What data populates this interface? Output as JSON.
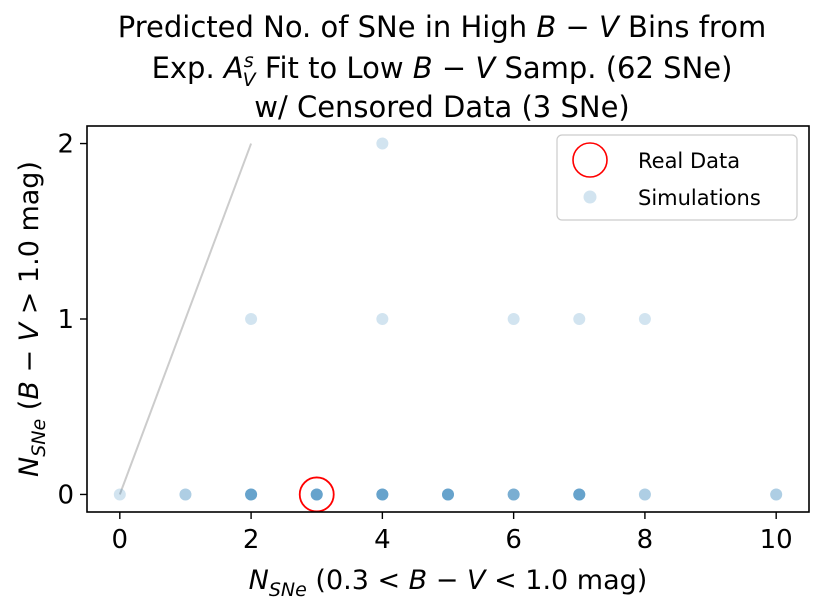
{
  "chart_data": {
    "type": "scatter",
    "title": {
      "line1_prefix": "Predicted No. of SNe in High ",
      "line1_b": "B",
      "line1_op": " − ",
      "line1_v": "V",
      "line1_suffix": " Bins from",
      "line2_prefix": "Exp. ",
      "line2_a": "A",
      "line2_sup": "s",
      "line2_sub": "V",
      "line2_mid": " Fit to Low ",
      "line2_b": "B",
      "line2_op": " − ",
      "line2_v": "V",
      "line2_suffix": " Samp. (62 SNe)",
      "line3": "w/ Censored Data (3 SNe)"
    },
    "xlabel": {
      "n": "N",
      "sub": "SNe",
      "rest_open": " (0.3 < ",
      "b": "B",
      "op": " − ",
      "v": "V",
      "rest_close": " < 1.0 mag)"
    },
    "ylabel": {
      "n": "N",
      "sub": "SNe",
      "rest_open": " (",
      "b": "B",
      "op": " − ",
      "v": "V",
      "rest_close": " > 1.0 mag)"
    },
    "xlim": [
      -0.5,
      10.5
    ],
    "ylim": [
      -0.1,
      2.1
    ],
    "xticks": [
      0,
      2,
      4,
      6,
      8,
      10
    ],
    "yticks": [
      0,
      1,
      2
    ],
    "reference_line": {
      "x": [
        0,
        2
      ],
      "y": [
        0,
        2
      ],
      "color": "#cccccc"
    },
    "series": [
      {
        "name": "Simulations",
        "color": "#1f77b4",
        "alpha": 0.2,
        "points": [
          {
            "x": 0,
            "y": 0,
            "count": 1
          },
          {
            "x": 1,
            "y": 0,
            "count": 2
          },
          {
            "x": 2,
            "y": 0,
            "count": 5
          },
          {
            "x": 3,
            "y": 0,
            "count": 5
          },
          {
            "x": 4,
            "y": 0,
            "count": 5
          },
          {
            "x": 5,
            "y": 0,
            "count": 5
          },
          {
            "x": 6,
            "y": 0,
            "count": 4
          },
          {
            "x": 7,
            "y": 0,
            "count": 5
          },
          {
            "x": 8,
            "y": 0,
            "count": 2
          },
          {
            "x": 10,
            "y": 0,
            "count": 2
          },
          {
            "x": 2,
            "y": 1,
            "count": 1
          },
          {
            "x": 4,
            "y": 1,
            "count": 1
          },
          {
            "x": 6,
            "y": 1,
            "count": 1
          },
          {
            "x": 7,
            "y": 1,
            "count": 1
          },
          {
            "x": 8,
            "y": 1,
            "count": 1
          },
          {
            "x": 4,
            "y": 2,
            "count": 1
          }
        ]
      },
      {
        "name": "Real Data",
        "color": "#ff0000",
        "marker": "open-circle",
        "points": [
          {
            "x": 3,
            "y": 0
          }
        ]
      }
    ],
    "legend": {
      "position": "top-right",
      "items": [
        {
          "label": "Real Data",
          "marker": "open-circle",
          "color": "#ff0000"
        },
        {
          "label": "Simulations",
          "marker": "filled-circle",
          "color": "#1f77b4",
          "alpha": 0.2
        }
      ]
    }
  }
}
